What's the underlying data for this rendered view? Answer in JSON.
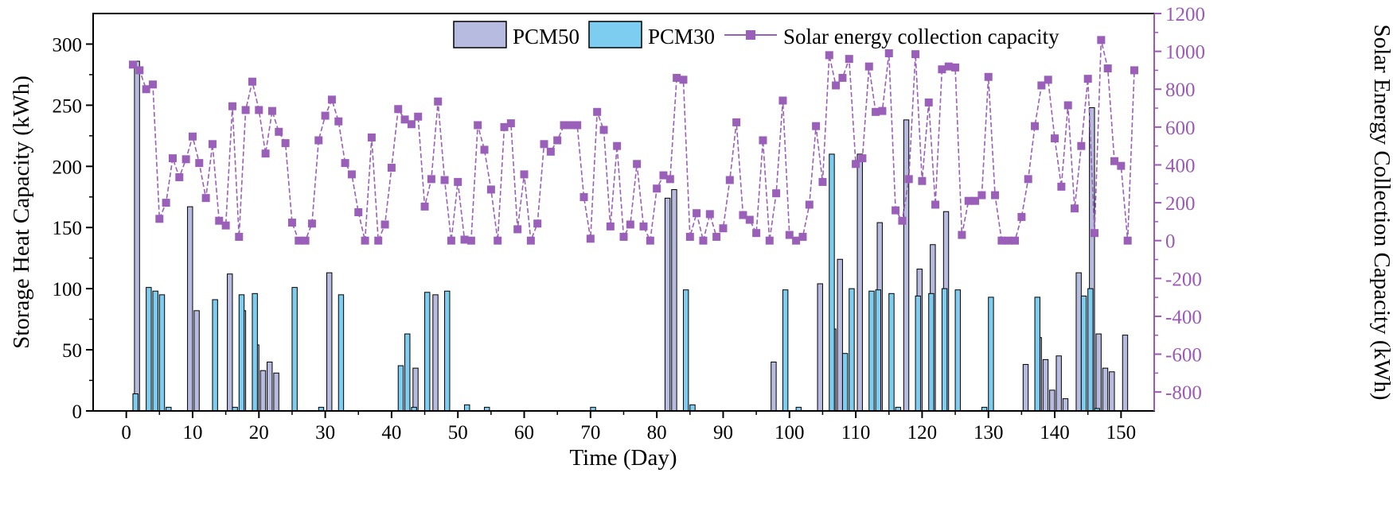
{
  "colors": {
    "pcm50": "#b8bbe0",
    "pcm30": "#7ccdf0",
    "solar": "#9a5fb8",
    "solar_marker": "#9a5fb8",
    "bar_stroke": "#000000",
    "right_axis": "#9b59b6"
  },
  "chart_data": {
    "type": "bar+line",
    "xlabel": "Time (Day)",
    "ylabel_left": "Storage Heat Capacity (kWh)",
    "ylabel_right": "Solar Energy Collection Capacity (kWh)",
    "xlim": [
      -5,
      155
    ],
    "ylim_left": [
      0,
      325
    ],
    "ylim_right": [
      -900,
      1200
    ],
    "x_ticks": [
      0,
      10,
      20,
      30,
      40,
      50,
      60,
      70,
      80,
      90,
      100,
      110,
      120,
      130,
      140,
      150
    ],
    "x_tick_labels": [
      "0",
      "10",
      "20",
      "30",
      "40",
      "50",
      "60",
      "70",
      "80",
      "90",
      "100",
      "110",
      "120",
      "130",
      "140",
      "150"
    ],
    "left_ticks": [
      0,
      50,
      100,
      150,
      200,
      250,
      300
    ],
    "left_tick_labels": [
      "0",
      "50",
      "100",
      "150",
      "200",
      "250",
      "300"
    ],
    "right_ticks": [
      -800,
      -600,
      -400,
      -200,
      0,
      200,
      400,
      600,
      800,
      1000,
      1200
    ],
    "right_tick_labels": [
      "-800",
      "-600",
      "-400",
      "-200",
      "0",
      "200",
      "400",
      "600",
      "800",
      "1000",
      "1200"
    ],
    "legend": {
      "placement": "top-center",
      "pcm50": "PCM50",
      "pcm30": "PCM30",
      "solar": "Solar energy collection capacity"
    },
    "series": [
      {
        "name": "PCM50",
        "axis": "left",
        "type": "bar",
        "points": [
          [
            2,
            286
          ],
          [
            10,
            167
          ],
          [
            11,
            82
          ],
          [
            16,
            112
          ],
          [
            18,
            82
          ],
          [
            20,
            54
          ],
          [
            21,
            33
          ],
          [
            22,
            40
          ],
          [
            23,
            31
          ],
          [
            31,
            113
          ],
          [
            44,
            35
          ],
          [
            47,
            95
          ],
          [
            82,
            174
          ],
          [
            83,
            181
          ],
          [
            98,
            40
          ],
          [
            105,
            104
          ],
          [
            107,
            67
          ],
          [
            108,
            124
          ],
          [
            111,
            210
          ],
          [
            114,
            154
          ],
          [
            118,
            238
          ],
          [
            120,
            116
          ],
          [
            122,
            136
          ],
          [
            124,
            163
          ],
          [
            136,
            38
          ],
          [
            138,
            60
          ],
          [
            139,
            42
          ],
          [
            140,
            17
          ],
          [
            141,
            45
          ],
          [
            142,
            10
          ],
          [
            144,
            113
          ],
          [
            146,
            248
          ],
          [
            147,
            63
          ],
          [
            148,
            35
          ],
          [
            149,
            32
          ],
          [
            151,
            62
          ]
        ]
      },
      {
        "name": "PCM30",
        "axis": "left",
        "type": "bar",
        "points": [
          [
            1,
            14
          ],
          [
            3,
            101
          ],
          [
            4,
            98
          ],
          [
            5,
            95
          ],
          [
            6,
            3
          ],
          [
            13,
            91
          ],
          [
            16,
            3
          ],
          [
            17,
            95
          ],
          [
            19,
            96
          ],
          [
            25,
            101
          ],
          [
            29,
            3
          ],
          [
            32,
            95
          ],
          [
            41,
            37
          ],
          [
            42,
            63
          ],
          [
            43,
            3
          ],
          [
            45,
            97
          ],
          [
            48,
            98
          ],
          [
            51,
            5
          ],
          [
            54,
            3
          ],
          [
            70,
            3
          ],
          [
            84,
            99
          ],
          [
            85,
            5
          ],
          [
            99,
            99
          ],
          [
            101,
            3
          ],
          [
            106,
            210
          ],
          [
            108,
            47
          ],
          [
            109,
            100
          ],
          [
            112,
            98
          ],
          [
            113,
            99
          ],
          [
            115,
            96
          ],
          [
            116,
            3
          ],
          [
            119,
            94
          ],
          [
            121,
            96
          ],
          [
            123,
            100
          ],
          [
            125,
            99
          ],
          [
            129,
            3
          ],
          [
            130,
            93
          ],
          [
            137,
            93
          ],
          [
            144,
            94
          ],
          [
            145,
            100
          ],
          [
            146,
            2
          ]
        ]
      },
      {
        "name": "Solar energy collection capacity",
        "axis": "right",
        "type": "line",
        "points": [
          [
            1,
            930
          ],
          [
            2,
            900
          ],
          [
            3,
            800
          ],
          [
            4,
            825
          ],
          [
            5,
            115
          ],
          [
            6,
            200
          ],
          [
            7,
            435
          ],
          [
            8,
            335
          ],
          [
            9,
            430
          ],
          [
            10,
            550
          ],
          [
            11,
            410
          ],
          [
            12,
            225
          ],
          [
            13,
            510
          ],
          [
            14,
            105
          ],
          [
            15,
            80
          ],
          [
            16,
            710
          ],
          [
            17,
            20
          ],
          [
            18,
            690
          ],
          [
            19,
            840
          ],
          [
            20,
            690
          ],
          [
            21,
            460
          ],
          [
            22,
            685
          ],
          [
            23,
            575
          ],
          [
            24,
            515
          ],
          [
            25,
            95
          ],
          [
            26,
            0
          ],
          [
            27,
            0
          ],
          [
            28,
            90
          ],
          [
            29,
            530
          ],
          [
            30,
            660
          ],
          [
            31,
            745
          ],
          [
            32,
            630
          ],
          [
            33,
            410
          ],
          [
            34,
            350
          ],
          [
            35,
            150
          ],
          [
            36,
            0
          ],
          [
            37,
            545
          ],
          [
            38,
            0
          ],
          [
            39,
            85
          ],
          [
            40,
            385
          ],
          [
            41,
            695
          ],
          [
            42,
            640
          ],
          [
            43,
            615
          ],
          [
            44,
            655
          ],
          [
            45,
            180
          ],
          [
            46,
            325
          ],
          [
            47,
            735
          ],
          [
            48,
            320
          ],
          [
            49,
            0
          ],
          [
            50,
            310
          ],
          [
            51,
            5
          ],
          [
            52,
            0
          ],
          [
            53,
            610
          ],
          [
            54,
            480
          ],
          [
            55,
            270
          ],
          [
            56,
            0
          ],
          [
            57,
            600
          ],
          [
            58,
            620
          ],
          [
            59,
            60
          ],
          [
            60,
            350
          ],
          [
            61,
            0
          ],
          [
            62,
            90
          ],
          [
            63,
            510
          ],
          [
            64,
            470
          ],
          [
            65,
            530
          ],
          [
            66,
            610
          ],
          [
            67,
            610
          ],
          [
            68,
            610
          ],
          [
            69,
            230
          ],
          [
            70,
            10
          ],
          [
            71,
            680
          ],
          [
            72,
            585
          ],
          [
            73,
            75
          ],
          [
            74,
            500
          ],
          [
            75,
            20
          ],
          [
            76,
            85
          ],
          [
            77,
            405
          ],
          [
            78,
            75
          ],
          [
            79,
            0
          ],
          [
            80,
            275
          ],
          [
            81,
            345
          ],
          [
            82,
            325
          ],
          [
            83,
            860
          ],
          [
            84,
            850
          ],
          [
            85,
            20
          ],
          [
            86,
            145
          ],
          [
            87,
            0
          ],
          [
            88,
            140
          ],
          [
            89,
            20
          ],
          [
            90,
            65
          ],
          [
            91,
            320
          ],
          [
            92,
            625
          ],
          [
            93,
            135
          ],
          [
            94,
            110
          ],
          [
            95,
            40
          ],
          [
            96,
            530
          ],
          [
            97,
            0
          ],
          [
            98,
            250
          ],
          [
            99,
            740
          ],
          [
            100,
            30
          ],
          [
            101,
            0
          ],
          [
            102,
            20
          ],
          [
            103,
            190
          ],
          [
            104,
            605
          ],
          [
            105,
            310
          ],
          [
            106,
            980
          ],
          [
            107,
            820
          ],
          [
            108,
            860
          ],
          [
            109,
            960
          ],
          [
            110,
            405
          ],
          [
            111,
            435
          ],
          [
            112,
            920
          ],
          [
            113,
            680
          ],
          [
            114,
            685
          ],
          [
            115,
            990
          ],
          [
            116,
            160
          ],
          [
            117,
            105
          ],
          [
            118,
            325
          ],
          [
            119,
            985
          ],
          [
            120,
            315
          ],
          [
            121,
            730
          ],
          [
            122,
            190
          ],
          [
            123,
            905
          ],
          [
            124,
            920
          ],
          [
            125,
            915
          ],
          [
            126,
            30
          ],
          [
            127,
            210
          ],
          [
            128,
            210
          ],
          [
            129,
            240
          ],
          [
            130,
            865
          ],
          [
            131,
            240
          ],
          [
            132,
            0
          ],
          [
            133,
            0
          ],
          [
            134,
            0
          ],
          [
            135,
            125
          ],
          [
            136,
            325
          ],
          [
            137,
            605
          ],
          [
            138,
            820
          ],
          [
            139,
            850
          ],
          [
            140,
            540
          ],
          [
            141,
            285
          ],
          [
            142,
            715
          ],
          [
            143,
            170
          ],
          [
            144,
            500
          ],
          [
            145,
            855
          ],
          [
            146,
            40
          ],
          [
            147,
            1060
          ],
          [
            148,
            910
          ],
          [
            149,
            420
          ],
          [
            150,
            395
          ],
          [
            151,
            0
          ],
          [
            152,
            900
          ]
        ]
      }
    ]
  }
}
